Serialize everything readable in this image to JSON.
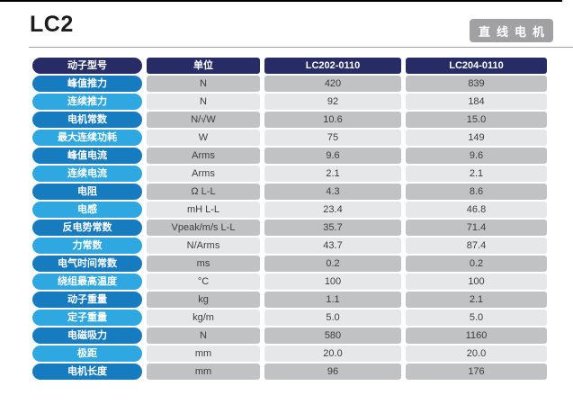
{
  "page": {
    "title": "LC2",
    "badge": "直线电机"
  },
  "colors": {
    "header_navy": "#272b66",
    "pill_blue_dark": "#177bc0",
    "pill_blue_light": "#2fa8e1",
    "cell_gray_dark": "#c0c2c4",
    "cell_gray_light": "#e6e7e9",
    "badge_gray": "#a1a1a3"
  },
  "table": {
    "headers": [
      "动子型号",
      "单位",
      "LC202-0110",
      "LC204-0110"
    ],
    "rows": [
      {
        "label": "峰值推力",
        "unit": "N",
        "values": [
          "420",
          "839"
        ]
      },
      {
        "label": "连续推力",
        "unit": "N",
        "values": [
          "92",
          "184"
        ]
      },
      {
        "label": "电机常数",
        "unit": "N/√W",
        "values": [
          "10.6",
          "15.0"
        ]
      },
      {
        "label": "最大连续功耗",
        "unit": "W",
        "values": [
          "75",
          "149"
        ]
      },
      {
        "label": "峰值电流",
        "unit": "Arms",
        "values": [
          "9.6",
          "9.6"
        ]
      },
      {
        "label": "连续电流",
        "unit": "Arms",
        "values": [
          "2.1",
          "2.1"
        ]
      },
      {
        "label": "电阻",
        "unit": "Ω L-L",
        "values": [
          "4.3",
          "8.6"
        ]
      },
      {
        "label": "电感",
        "unit": "mH L-L",
        "values": [
          "23.4",
          "46.8"
        ]
      },
      {
        "label": "反电势常数",
        "unit": "Vpeak/m/s L-L",
        "values": [
          "35.7",
          "71.4"
        ]
      },
      {
        "label": "力常数",
        "unit": "N/Arms",
        "values": [
          "43.7",
          "87.4"
        ]
      },
      {
        "label": "电气时间常数",
        "unit": "ms",
        "values": [
          "0.2",
          "0.2"
        ]
      },
      {
        "label": "绕组最高温度",
        "unit": "°C",
        "values": [
          "100",
          "100"
        ]
      },
      {
        "label": "动子重量",
        "unit": "kg",
        "values": [
          "1.1",
          "2.1"
        ]
      },
      {
        "label": "定子重量",
        "unit": "kg/m",
        "values": [
          "5.0",
          "5.0"
        ]
      },
      {
        "label": "电磁吸力",
        "unit": "N",
        "values": [
          "580",
          "1160"
        ]
      },
      {
        "label": "极距",
        "unit": "mm",
        "values": [
          "20.0",
          "20.0"
        ]
      },
      {
        "label": "电机长度",
        "unit": "mm",
        "values": [
          "96",
          "176"
        ]
      }
    ]
  }
}
